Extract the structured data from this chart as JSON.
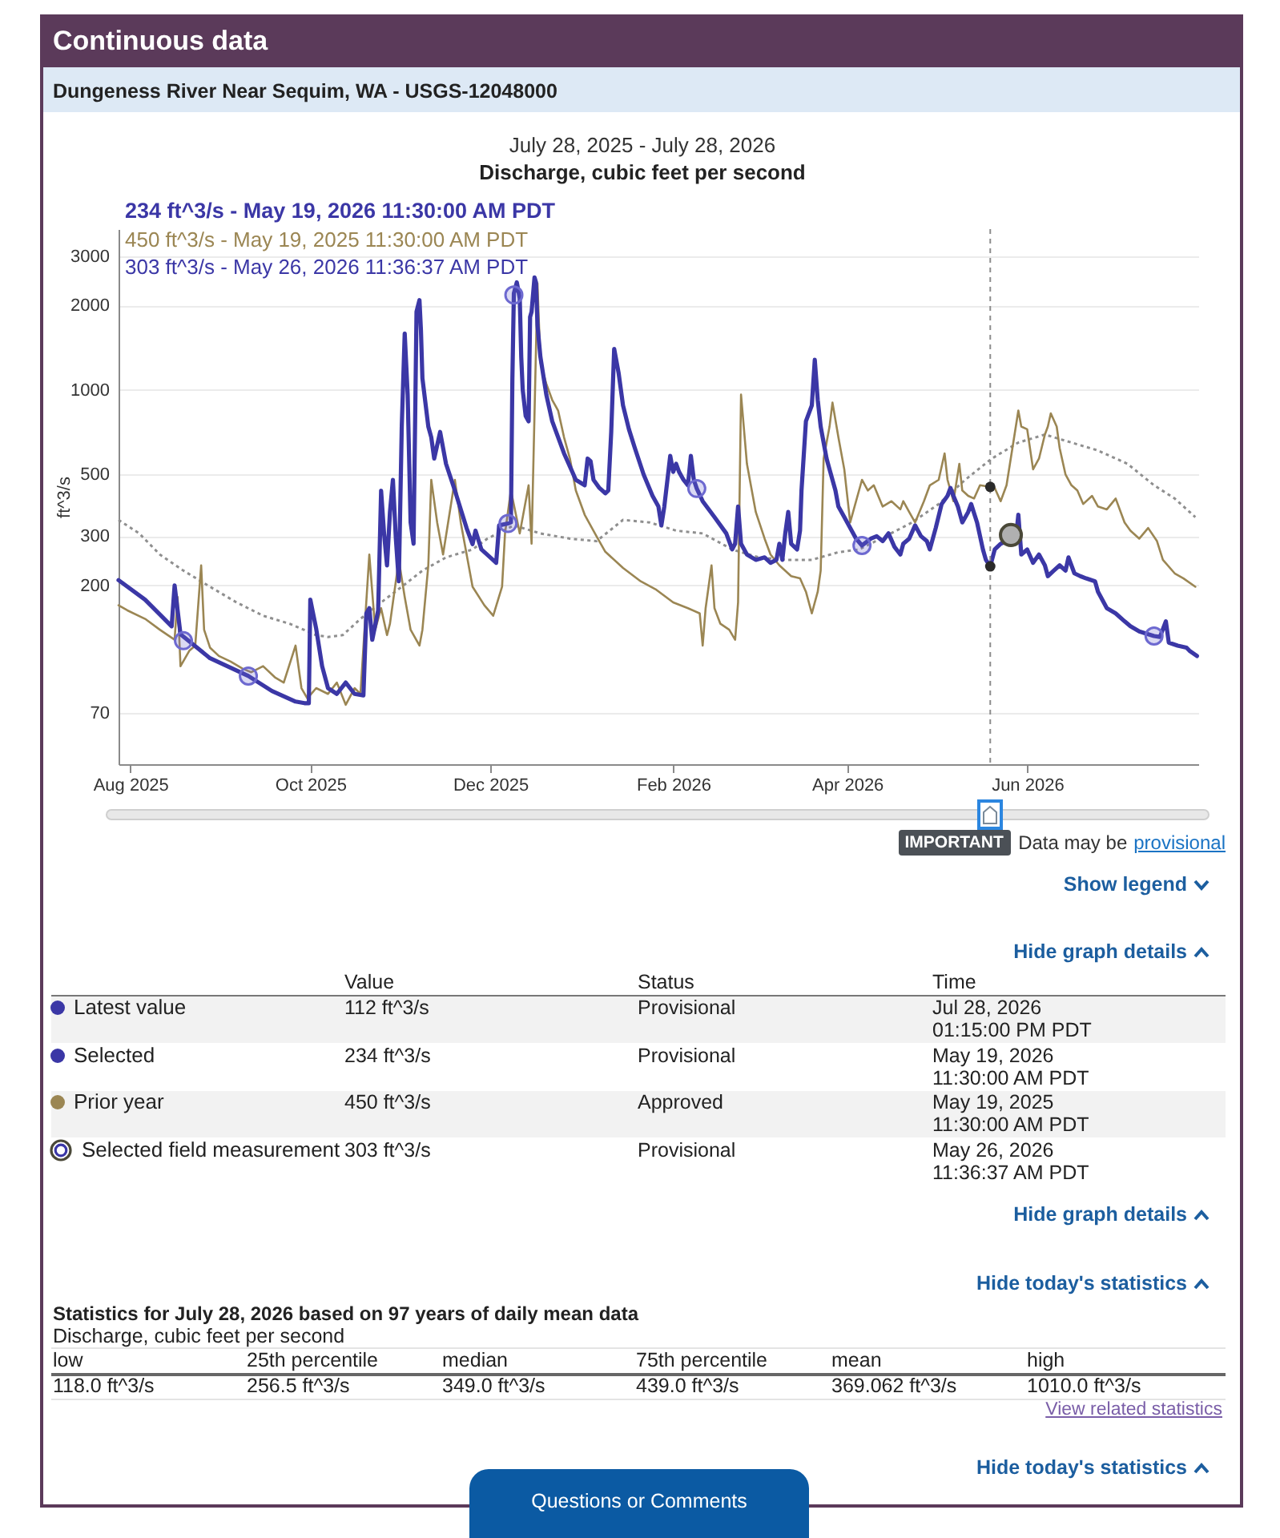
{
  "chart_data": {
    "type": "line",
    "title": "Discharge, cubic feet per second",
    "subtitle": "July 28, 2025 - July 28, 2026",
    "ylabel": "ft^3/s",
    "log": true,
    "grid": "y",
    "xlim": [
      "2025-07-28",
      "2026-07-29"
    ],
    "ylim": [
      46,
      3750
    ],
    "xticks": [
      {
        "value": "2025-08-01",
        "label": "Aug 2025"
      },
      {
        "value": "2025-10-01",
        "label": "Oct 2025"
      },
      {
        "value": "2025-12-01",
        "label": "Dec 2025"
      },
      {
        "value": "2026-02-01",
        "label": "Feb 2026"
      },
      {
        "value": "2026-04-01",
        "label": "Apr 2026"
      },
      {
        "value": "2026-06-01",
        "label": "Jun 2026"
      }
    ],
    "yticks": [
      70,
      200,
      300,
      500,
      1000,
      2000,
      3000
    ],
    "series": [
      {
        "color": "#3b37a6",
        "x": [
          "2025-07-28",
          "2025-08-06",
          "2025-08-15",
          "2025-08-16",
          "2025-08-18",
          "2025-08-28",
          "2025-09-10",
          "2025-09-18",
          "2025-09-26",
          "2025-09-29",
          "2025-09-30T12:00",
          "2025-10-01",
          "2025-10-03",
          "2025-10-05",
          "2025-10-07",
          "2025-10-10",
          "2025-10-13",
          "2025-10-16",
          "2025-10-19",
          "2025-10-20",
          "2025-10-21",
          "2025-10-22",
          "2025-10-24",
          "2025-10-25",
          "2025-10-26",
          "2025-10-27",
          "2025-10-28",
          "2025-10-29",
          "2025-10-30",
          "2025-10-31",
          "2025-11-01",
          "2025-11-02",
          "2025-11-03",
          "2025-11-04",
          "2025-11-05",
          "2025-11-06",
          "2025-11-07",
          "2025-11-07T12:00",
          "2025-11-08",
          "2025-11-10",
          "2025-11-11",
          "2025-11-12",
          "2025-11-14",
          "2025-11-16",
          "2025-11-19",
          "2025-11-23",
          "2025-11-25",
          "2025-11-26",
          "2025-11-28",
          "2025-12-01",
          "2025-12-03",
          "2025-12-04",
          "2025-12-07",
          "2025-12-08",
          "2025-12-08T12:00",
          "2025-12-09",
          "2025-12-10",
          "2025-12-11",
          "2025-12-11T12:00",
          "2025-12-12",
          "2025-12-13",
          "2025-12-14",
          "2025-12-14T12:00",
          "2025-12-15",
          "2025-12-16",
          "2025-12-16T12:00",
          "2025-12-17",
          "2025-12-18",
          "2025-12-20",
          "2025-12-22",
          "2025-12-24",
          "2025-12-26",
          "2025-12-28",
          "2025-12-30",
          "2026-01-02",
          "2026-01-03",
          "2026-01-04",
          "2026-01-05",
          "2026-01-07",
          "2026-01-09",
          "2026-01-10",
          "2026-01-11",
          "2026-01-12",
          "2026-01-13T12:00",
          "2026-01-15",
          "2026-01-17",
          "2026-01-19",
          "2026-01-22",
          "2026-01-25",
          "2026-01-27",
          "2026-01-28",
          "2026-01-29",
          "2026-01-31",
          "2026-02-01",
          "2026-02-02",
          "2026-02-03",
          "2026-02-04T12:00",
          "2026-02-06",
          "2026-02-07",
          "2026-02-08",
          "2026-02-09",
          "2026-02-11",
          "2026-02-15",
          "2026-02-19",
          "2026-02-21",
          "2026-02-22",
          "2026-02-23",
          "2026-02-24",
          "2026-02-26",
          "2026-03-01",
          "2026-03-04",
          "2026-03-06",
          "2026-03-08",
          "2026-03-09",
          "2026-03-10",
          "2026-03-11",
          "2026-03-12",
          "2026-03-13",
          "2026-03-15",
          "2026-03-16",
          "2026-03-16T12:00",
          "2026-03-18",
          "2026-03-20",
          "2026-03-21",
          "2026-03-22",
          "2026-03-23",
          "2026-03-25",
          "2026-03-26",
          "2026-03-28",
          "2026-03-29",
          "2026-03-31",
          "2026-04-01",
          "2026-04-04",
          "2026-04-06",
          "2026-04-09",
          "2026-04-11",
          "2026-04-13",
          "2026-04-15",
          "2026-04-17",
          "2026-04-19",
          "2026-04-20",
          "2026-04-22",
          "2026-04-24",
          "2026-04-26",
          "2026-04-28",
          "2026-04-29",
          "2026-05-01",
          "2026-05-03",
          "2026-05-05",
          "2026-05-06",
          "2026-05-07",
          "2026-05-08T12:00",
          "2026-05-10",
          "2026-05-12",
          "2026-05-13",
          "2026-05-15",
          "2026-05-17",
          "2026-05-18",
          "2026-05-19T11:30",
          "2026-05-21",
          "2026-05-23",
          "2026-05-25",
          "2026-05-26T11:36",
          "2026-05-28",
          "2026-05-29",
          "2026-05-30",
          "2026-06-01",
          "2026-06-03",
          "2026-06-05",
          "2026-06-07",
          "2026-06-08",
          "2026-06-10",
          "2026-06-12",
          "2026-06-14",
          "2026-06-15",
          "2026-06-17",
          "2026-06-19",
          "2026-06-21",
          "2026-06-24",
          "2026-06-25",
          "2026-06-28",
          "2026-07-01",
          "2026-07-04",
          "2026-07-06",
          "2026-07-09",
          "2026-07-12",
          "2026-07-14",
          "2026-07-16",
          "2026-07-18",
          "2026-07-19",
          "2026-07-22",
          "2026-07-25",
          "2026-07-26",
          "2026-07-28T13:15"
        ],
        "values": [
          209,
          178,
          143,
          200,
          134,
          110,
          95,
          84,
          77,
          76,
          76,
          178,
          140,
          103,
          86,
          82,
          90,
          82,
          81,
          159,
          166,
          128,
          163,
          436,
          307,
          236,
          366,
          477,
          294,
          207,
          739,
          1590,
          961,
          336,
          282,
          1900,
          2090,
          1630,
          1100,
          739,
          677,
          568,
          707,
          544,
          437,
          320,
          281,
          314,
          269,
          252,
          241,
          328,
          333,
          336,
          1100,
          2210,
          2420,
          2120,
          1310,
          1000,
          807,
          772,
          1820,
          1900,
          2520,
          2420,
          1700,
          1310,
          961,
          772,
          677,
          593,
          532,
          477,
          456,
          568,
          556,
          477,
          446,
          427,
          437,
          707,
          1400,
          1150,
          880,
          723,
          620,
          498,
          418,
          383,
          328,
          383,
          581,
          509,
          544,
          509,
          477,
          456,
          581,
          477,
          444,
          400,
          351,
          307,
          269,
          282,
          383,
          282,
          258,
          247,
          252,
          241,
          247,
          282,
          247,
          307,
          366,
          282,
          269,
          314,
          437,
          772,
          880,
          1280,
          920,
          739,
          568,
          520,
          437,
          383,
          351,
          336,
          294,
          278,
          294,
          300,
          288,
          307,
          275,
          258,
          282,
          294,
          328,
          300,
          288,
          269,
          321,
          391,
          418,
          446,
          418,
          383,
          336,
          366,
          391,
          336,
          269,
          247,
          234,
          269,
          282,
          288,
          303,
          282,
          358,
          258,
          269,
          241,
          258,
          236,
          216,
          226,
          236,
          226,
          252,
          221,
          216,
          212,
          207,
          190,
          166,
          159,
          149,
          143,
          137,
          134,
          132,
          131,
          149,
          125,
          122,
          120,
          117,
          112
        ]
      },
      {
        "color": "#9b8653",
        "x": [
          "2025-07-28",
          "2025-07-31",
          "2025-08-06",
          "2025-08-11",
          "2025-08-16",
          "2025-08-17",
          "2025-08-18",
          "2025-08-21",
          "2025-08-23",
          "2025-08-25",
          "2025-08-26",
          "2025-08-28",
          "2025-08-31",
          "2025-09-04",
          "2025-09-08",
          "2025-09-11",
          "2025-09-15",
          "2025-09-19",
          "2025-09-22",
          "2025-09-26",
          "2025-09-28",
          "2025-09-30",
          "2025-10-03",
          "2025-10-07",
          "2025-10-10",
          "2025-10-13",
          "2025-10-16",
          "2025-10-18",
          "2025-10-21",
          "2025-10-23",
          "2025-10-25",
          "2025-10-27",
          "2025-10-28",
          "2025-10-31",
          "2025-11-02",
          "2025-11-04",
          "2025-11-07",
          "2025-11-08",
          "2025-11-10",
          "2025-11-11",
          "2025-11-13",
          "2025-11-15",
          "2025-11-19",
          "2025-11-21",
          "2025-11-25",
          "2025-11-29",
          "2025-12-02",
          "2025-12-05",
          "2025-12-06",
          "2025-12-08",
          "2025-12-11",
          "2025-12-14",
          "2025-12-15",
          "2025-12-17",
          "2025-12-18",
          "2025-12-20",
          "2025-12-22",
          "2025-12-24",
          "2025-12-26",
          "2025-12-28",
          "2025-12-30",
          "2026-01-02",
          "2026-01-06",
          "2026-01-09",
          "2026-01-15",
          "2026-01-21",
          "2026-01-26",
          "2026-02-01",
          "2026-02-06",
          "2026-02-10",
          "2026-02-11",
          "2026-02-12",
          "2026-02-14",
          "2026-02-15",
          "2026-02-17",
          "2026-02-20",
          "2026-02-22",
          "2026-02-23",
          "2026-02-24",
          "2026-02-26",
          "2026-03-01",
          "2026-03-04",
          "2026-03-06",
          "2026-03-09",
          "2026-03-13",
          "2026-03-16",
          "2026-03-18",
          "2026-03-20",
          "2026-03-22",
          "2026-03-23",
          "2026-03-24",
          "2026-03-26",
          "2026-03-27",
          "2026-03-29",
          "2026-03-31",
          "2026-04-02",
          "2026-04-06",
          "2026-04-08",
          "2026-04-10",
          "2026-04-13",
          "2026-04-16",
          "2026-04-19",
          "2026-04-20",
          "2026-04-22",
          "2026-04-24",
          "2026-04-27",
          "2026-04-29",
          "2026-05-02",
          "2026-05-04",
          "2026-05-05",
          "2026-05-07",
          "2026-05-09",
          "2026-05-10",
          "2026-05-12",
          "2026-05-14",
          "2026-05-16",
          "2026-05-19T11:30",
          "2026-05-21",
          "2026-05-23",
          "2026-05-25",
          "2026-05-27",
          "2026-05-29",
          "2026-05-30",
          "2026-06-01",
          "2026-06-03",
          "2026-06-05",
          "2026-06-07",
          "2026-06-08",
          "2026-06-09",
          "2026-06-11",
          "2026-06-12",
          "2026-06-14",
          "2026-06-16",
          "2026-06-18",
          "2026-06-20",
          "2026-06-23",
          "2026-06-25",
          "2026-06-28",
          "2026-07-01",
          "2026-07-04",
          "2026-07-06",
          "2026-07-09",
          "2026-07-12",
          "2026-07-15",
          "2026-07-17",
          "2026-07-21",
          "2026-07-24",
          "2026-07-28"
        ],
        "values": [
          170,
          163,
          152,
          139,
          128,
          182,
          103,
          117,
          122,
          236,
          139,
          120,
          112,
          107,
          101,
          98,
          103,
          94,
          90,
          122,
          86,
          79,
          86,
          82,
          90,
          75,
          86,
          82,
          258,
          139,
          166,
          133,
          146,
          247,
          182,
          139,
          122,
          139,
          236,
          477,
          336,
          258,
          477,
          336,
          198,
          170,
          156,
          198,
          307,
          437,
          307,
          456,
          282,
          2400,
          1250,
          1050,
          920,
          843,
          677,
          568,
          437,
          358,
          300,
          264,
          231,
          207,
          194,
          174,
          166,
          159,
          122,
          166,
          236,
          166,
          146,
          139,
          128,
          174,
          961,
          544,
          366,
          294,
          258,
          236,
          216,
          212,
          190,
          159,
          190,
          226,
          568,
          739,
          900,
          677,
          520,
          336,
          477,
          437,
          456,
          383,
          400,
          374,
          400,
          366,
          336,
          400,
          456,
          477,
          593,
          477,
          400,
          544,
          437,
          418,
          409,
          456,
          450,
          446,
          400,
          456,
          620,
          843,
          739,
          723,
          520,
          568,
          692,
          739,
          824,
          739,
          620,
          498,
          456,
          437,
          391,
          418,
          383,
          374,
          409,
          336,
          314,
          294,
          321,
          288,
          247,
          221,
          212,
          198
        ]
      },
      {
        "color": "#8f8f8f",
        "line_style": "dotted",
        "x": [
          "2025-07-28",
          "2025-08-04",
          "2025-08-11",
          "2025-08-19",
          "2025-08-28",
          "2025-09-06",
          "2025-09-15",
          "2025-09-24",
          "2025-10-03",
          "2025-10-07",
          "2025-10-12",
          "2025-10-18",
          "2025-10-25",
          "2025-11-01",
          "2025-11-08",
          "2025-11-16",
          "2025-11-25",
          "2025-11-30",
          "2025-12-09",
          "2025-12-18",
          "2025-12-28",
          "2026-01-06",
          "2026-01-15",
          "2026-01-24",
          "2026-02-02",
          "2026-02-11",
          "2026-02-21",
          "2026-03-02",
          "2026-03-11",
          "2026-03-20",
          "2026-03-29",
          "2026-04-05",
          "2026-04-14",
          "2026-04-23",
          "2026-05-02",
          "2026-05-11",
          "2026-05-20",
          "2026-05-29",
          "2026-06-07",
          "2026-06-16",
          "2026-06-25",
          "2026-07-05",
          "2026-07-14",
          "2026-07-21",
          "2026-07-28"
        ],
        "values": [
          343,
          307,
          258,
          226,
          198,
          174,
          156,
          146,
          133,
          131,
          133,
          152,
          174,
          198,
          226,
          252,
          269,
          294,
          328,
          307,
          294,
          288,
          343,
          336,
          314,
          307,
          269,
          252,
          247,
          247,
          263,
          269,
          300,
          336,
          391,
          477,
          568,
          648,
          692,
          648,
          607,
          544,
          456,
          409,
          351
        ]
      },
      {
        "type": "scatter",
        "color": "#6d69d0",
        "marker": "circle",
        "x": [
          "2025-08-19",
          "2025-09-10",
          "2025-12-07",
          "2025-12-09",
          "2026-02-09",
          "2026-04-06",
          "2026-07-14"
        ],
        "values": [
          127,
          95,
          333,
          2180,
          444,
          278,
          132
        ]
      },
      {
        "type": "scatter",
        "color": "#4a4838",
        "marker": "circle",
        "x": [
          "2026-05-26T11:36"
        ],
        "values": [
          303
        ]
      },
      {
        "type": "scatter",
        "color": "#2a2a2a",
        "marker": "circle",
        "x": [
          "2026-05-19T11:30",
          "2026-05-19T11:30"
        ],
        "values": [
          234,
          450
        ]
      }
    ],
    "ref_lines": [
      {
        "axis": "x",
        "value": "2026-05-19T11:30",
        "color": "#8c8c8c",
        "line_style": "dashed"
      }
    ],
    "annotations": [
      "Continuous data",
      "Dungeness River Near Sequim, WA - USGS-12048000",
      "234 ft^3/s - May 19, 2026 11:30:00 AM PDT",
      "450 ft^3/s - May 19, 2025 11:30:00 AM PDT",
      "303 ft^3/s - May 26, 2026 11:36:37 AM PDT",
      "IMPORTANT",
      "Data may be",
      "provisional",
      "Show legend",
      "Hide graph details",
      "Value",
      "Status",
      "Time",
      "Latest value",
      "112 ft^3/s",
      "Provisional",
      "Jul 28, 2026",
      "01:15:00 PM PDT",
      "Selected",
      "234 ft^3/s",
      "Provisional",
      "May 19, 2026",
      "11:30:00 AM PDT",
      "Prior year",
      "450 ft^3/s",
      "Approved",
      "May 19, 2025",
      "11:30:00 AM PDT",
      "Selected field measurement",
      "303 ft^3/s",
      "Provisional",
      "May 26, 2026",
      "11:36:37 AM PDT",
      "Hide graph details",
      "Hide today's statistics",
      "Statistics for July 28, 2026 based on 97 years of daily mean data",
      "Discharge, cubic feet per second",
      "low",
      "25th percentile",
      "median",
      "75th percentile",
      "mean",
      "high",
      "118.0 ft^3/s",
      "256.5 ft^3/s",
      "349.0 ft^3/s",
      "439.0 ft^3/s",
      "369.062 ft^3/s",
      "1010.0 ft^3/s",
      "View related statistics",
      "Hide today's statistics",
      "Questions or Comments"
    ]
  }
}
